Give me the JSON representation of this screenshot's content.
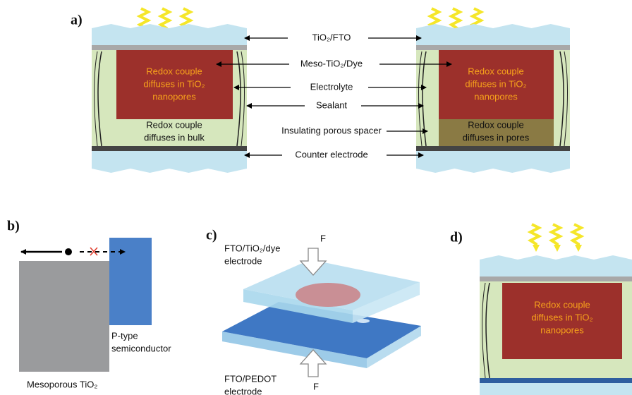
{
  "panel_a": {
    "label": "a)",
    "callouts": [
      "TiO₂/FTO",
      "Meso-TiO₂/Dye",
      "Electrolyte",
      "Sealant",
      "Insulating porous spacer",
      "Counter electrode"
    ],
    "left_cell": {
      "dye_region": [
        "Redox couple",
        "diffuses in TiO₂",
        "nanopores"
      ],
      "bulk_region": [
        "Redox couple",
        "diffuses in bulk"
      ]
    },
    "right_cell": {
      "dye_region": [
        "Redox couple",
        "diffuses in TiO₂",
        "nanopores"
      ],
      "spacer_region": [
        "Redox couple",
        "diffuses in pores"
      ]
    }
  },
  "panel_b": {
    "label": "b)",
    "p_type": [
      "P-type",
      "semiconductor"
    ],
    "mesoporous": "Mesoporous TiO₂"
  },
  "panel_c": {
    "label": "c)",
    "top_electrode": [
      "FTO/TiO₂/dye",
      "electrode"
    ],
    "top_force": "F",
    "bottom_electrode": [
      "FTO/PEDOT",
      "electrode"
    ],
    "bottom_force": "F"
  },
  "panel_d": {
    "label": "d)",
    "dye_region": [
      "Redox couple",
      "diffuses in TiO₂",
      "nanopores"
    ]
  }
}
